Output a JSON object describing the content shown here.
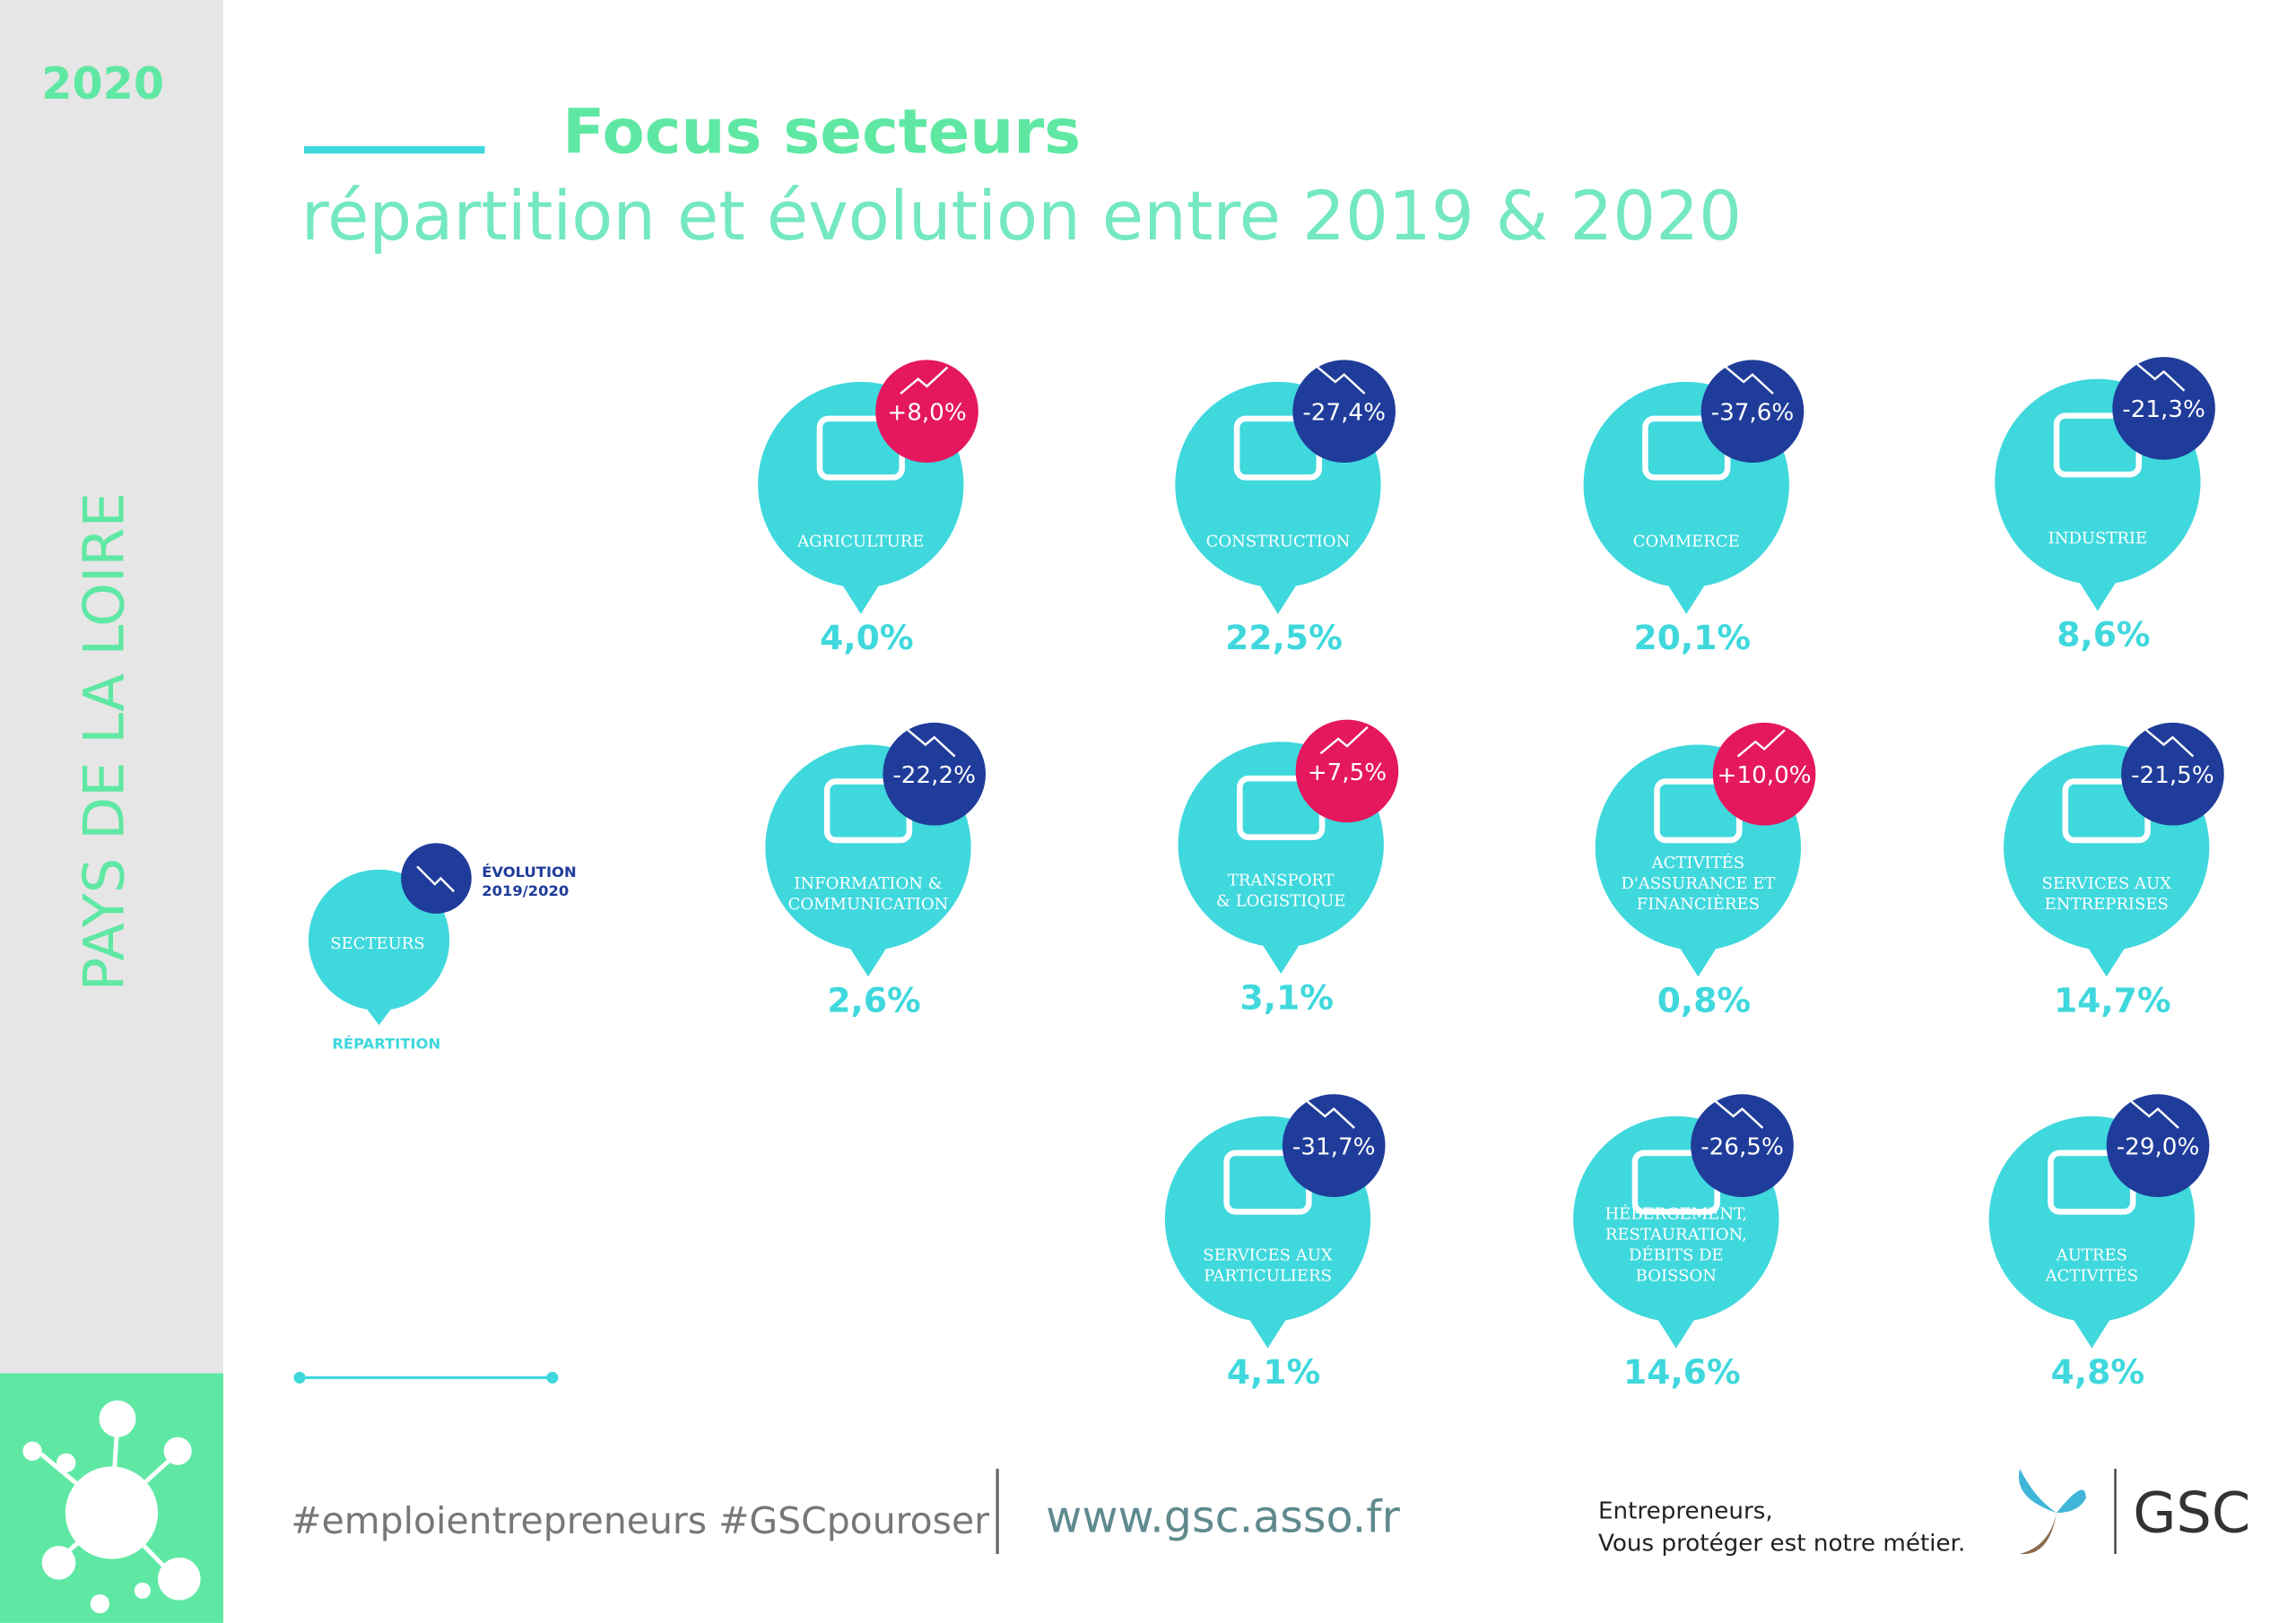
{
  "header": {
    "year": "2020",
    "region": "PAYS DE LA LOIRE",
    "title": "Focus secteurs",
    "subtitle": "répartition et évolution entre 2019 & 2020"
  },
  "legend": {
    "evolution": [
      "ÉVOLUTION",
      "2019/2020"
    ],
    "sectors": "SECTEURS",
    "share": "RÉPARTITION"
  },
  "sectors": [
    {
      "label": [
        "AGRICULTURE"
      ],
      "share": "4,0%",
      "evolution": "+8,0%"
    },
    {
      "label": [
        "CONSTRUCTION"
      ],
      "share": "22,5%",
      "evolution": "-27,4%"
    },
    {
      "label": [
        "COMMERCE"
      ],
      "share": "20,1%",
      "evolution": "-37,6%"
    },
    {
      "label": [
        "INDUSTRIE"
      ],
      "share": "8,6%",
      "evolution": "-21,3%"
    },
    {
      "label": [
        "INFORMATION &",
        "COMMUNICATION"
      ],
      "share": "2,6%",
      "evolution": "-22,2%"
    },
    {
      "label": [
        "TRANSPORT",
        "& LOGISTIQUE"
      ],
      "share": "3,1%",
      "evolution": "+7,5%"
    },
    {
      "label": [
        "ACTIVITÉS",
        "D'ASSURANCE ET",
        "FINANCIÈRES"
      ],
      "share": "0,8%",
      "evolution": "+10,0%"
    },
    {
      "label": [
        "SERVICES AUX",
        "ENTREPRISES"
      ],
      "share": "14,7%",
      "evolution": "-21,5%"
    },
    {
      "label": [
        "SERVICES AUX",
        "PARTICULIERS"
      ],
      "share": "4,1%",
      "evolution": "-31,7%"
    },
    {
      "label": [
        "HÉBERGEMENT,",
        "RESTAURATION,",
        "DÉBITS DE",
        "BOISSON"
      ],
      "share": "14,6%",
      "evolution": "-26,5%"
    },
    {
      "label": [
        "AUTRES",
        "ACTIVITÉS"
      ],
      "share": "4,8%",
      "evolution": "-29,0%"
    }
  ],
  "footer": {
    "hashtags": "#emploientrepreneurs #GSCpouroser",
    "website": "www.gsc.asso.fr",
    "tagline": [
      "Entrepreneurs,",
      "Vous protéger est notre métier."
    ],
    "brand": "GSC"
  }
}
